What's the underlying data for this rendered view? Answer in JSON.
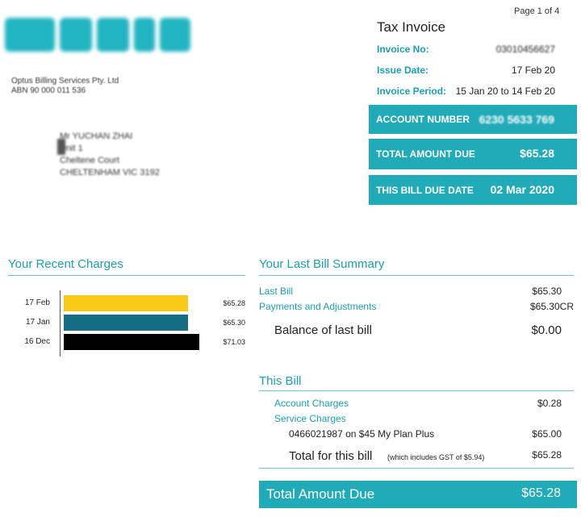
{
  "header": {
    "logo_text": "OPTUS",
    "biller_name": "Optus Billing Services Pty. Ltd",
    "biller_abn": "ABN 90 000 011 536",
    "page_number": "Page 1 of 4",
    "document_title": "Tax Invoice"
  },
  "recipient": {
    "line1": "Mr YUCHAN ZHAI",
    "line2": "Unit 1",
    "line3": "Cheltene Court",
    "line4": "CHELTENHAM VIC 3192"
  },
  "invoice": {
    "number_label": "Invoice No:",
    "number_value": "03010456627",
    "issue_date_label": "Issue Date:",
    "issue_date_value": "17 Feb 20",
    "period_label": "Invoice Period:",
    "period_value": "15 Jan 20 to 14 Feb 20"
  },
  "summary_boxes": {
    "account_label": "ACCOUNT NUMBER",
    "account_value": "6230 5633 769",
    "total_label": "TOTAL AMOUNT DUE",
    "total_value": "$65.28",
    "due_label": "THIS BILL DUE DATE",
    "due_value": "02 Mar 2020"
  },
  "recent_charges": {
    "title": "Your Recent Charges"
  },
  "chart_data": {
    "type": "bar",
    "orientation": "horizontal",
    "title": "Your Recent Charges",
    "categories": [
      "17 Feb",
      "17 Jan",
      "16 Dec"
    ],
    "values": [
      65.28,
      65.3,
      71.03
    ],
    "value_labels": [
      "$65.28",
      "$65.30",
      "$71.03"
    ],
    "colors": [
      "#f7cb15",
      "#156e82",
      "#000000"
    ],
    "xlim": [
      0,
      71.03
    ],
    "grid": false,
    "legend": "none"
  },
  "last_bill": {
    "title": "Your Last Bill Summary",
    "last_bill_label": "Last Bill",
    "last_bill_value": "$65.30",
    "payments_label": "Payments and Adjustments",
    "payments_value": "$65.30CR",
    "balance_label": "Balance of last bill",
    "balance_value": "$0.00"
  },
  "this_bill": {
    "title": "This Bill",
    "account_charges_label": "Account Charges",
    "account_charges_value": "$0.28",
    "service_charges_label": "Service Charges",
    "service_line_label": "0466021987 on $45 My Plan Plus",
    "service_line_value": "$65.00",
    "total_label": "Total for this bill",
    "total_note": "(which includes GST of $5.94)",
    "total_value": "$65.28"
  },
  "total_due": {
    "label": "Total Amount Due",
    "value": "$65.28"
  },
  "colors": {
    "accent": "#21aab8",
    "accent_text": "#1a9fb0",
    "bar_feb": "#f7cb15",
    "bar_jan": "#156e82",
    "bar_dec": "#000000"
  }
}
